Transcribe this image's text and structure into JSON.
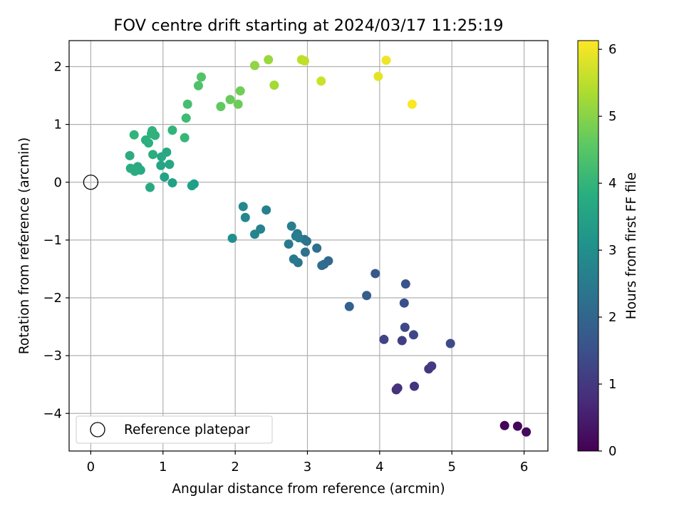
{
  "chart_data": {
    "type": "scatter",
    "title": "FOV centre drift starting at 2024/03/17 11:25:19",
    "xlabel": "Angular distance from reference (arcmin)",
    "ylabel": "Rotation from reference (arcmin)",
    "xlim": [
      -0.3,
      6.33
    ],
    "ylim": [
      -4.65,
      2.45
    ],
    "xticks": [
      0,
      1,
      2,
      3,
      4,
      5,
      6
    ],
    "yticks": [
      -4,
      -3,
      -2,
      -1,
      0,
      1,
      2
    ],
    "grid": true,
    "legend": {
      "placement": "lower-left",
      "entries": [
        "Reference platepar"
      ]
    },
    "colorbar": {
      "label": "Hours from first FF file",
      "range": [
        0,
        6.13
      ],
      "ticks": [
        0,
        1,
        2,
        3,
        4,
        5,
        6
      ],
      "colormap": "viridis"
    },
    "reference_point": {
      "x": 0,
      "y": 0
    },
    "series": [
      {
        "name": "Reference platepar",
        "points": [
          [
            0,
            0
          ]
        ]
      },
      {
        "points": [
          [
            5.73,
            -4.21,
            0.05
          ],
          [
            5.91,
            -4.22,
            0.1
          ],
          [
            6.03,
            -4.32,
            0.15
          ],
          [
            4.23,
            -3.59,
            0.85
          ],
          [
            4.25,
            -3.56,
            0.9
          ],
          [
            4.48,
            -3.53,
            0.95
          ],
          [
            4.68,
            -3.23,
            1.0
          ],
          [
            4.72,
            -3.18,
            1.05
          ],
          [
            4.31,
            -2.74,
            1.15
          ],
          [
            4.06,
            -2.72,
            1.25
          ],
          [
            4.47,
            -2.64,
            1.3
          ],
          [
            4.35,
            -2.51,
            1.35
          ],
          [
            4.98,
            -2.79,
            1.4
          ],
          [
            4.34,
            -2.09,
            1.5
          ],
          [
            4.36,
            -1.76,
            1.6
          ],
          [
            3.94,
            -1.58,
            1.7
          ],
          [
            3.82,
            -1.96,
            1.8
          ],
          [
            3.58,
            -2.15,
            1.9
          ],
          [
            3.29,
            -1.36,
            2.05
          ],
          [
            3.23,
            -1.42,
            2.1
          ],
          [
            3.2,
            -1.44,
            2.15
          ],
          [
            3.13,
            -1.14,
            2.2
          ],
          [
            2.97,
            -1.21,
            2.25
          ],
          [
            2.99,
            -1.02,
            2.3
          ],
          [
            2.96,
            -0.99,
            2.35
          ],
          [
            2.87,
            -1.39,
            2.4
          ],
          [
            2.81,
            -1.33,
            2.45
          ],
          [
            2.74,
            -1.07,
            2.5
          ],
          [
            2.86,
            -0.89,
            2.5
          ],
          [
            2.84,
            -0.93,
            2.55
          ],
          [
            2.88,
            -0.96,
            2.6
          ],
          [
            2.78,
            -0.76,
            2.65
          ],
          [
            2.43,
            -0.48,
            2.7
          ],
          [
            2.35,
            -0.81,
            2.75
          ],
          [
            2.27,
            -0.9,
            2.8
          ],
          [
            2.14,
            -0.61,
            2.85
          ],
          [
            2.11,
            -0.42,
            2.9
          ],
          [
            1.96,
            -0.97,
            3.05
          ],
          [
            1.43,
            -0.03,
            3.4
          ],
          [
            1.4,
            -0.06,
            3.45
          ],
          [
            1.13,
            -0.01,
            3.5
          ],
          [
            1.02,
            0.09,
            3.55
          ],
          [
            0.97,
            0.29,
            3.6
          ],
          [
            1.09,
            0.31,
            3.62
          ],
          [
            1.05,
            0.52,
            3.65
          ],
          [
            0.98,
            0.44,
            3.67
          ],
          [
            0.82,
            -0.09,
            3.7
          ],
          [
            0.69,
            0.21,
            3.72
          ],
          [
            0.65,
            0.27,
            3.74
          ],
          [
            0.61,
            0.19,
            3.76
          ],
          [
            0.55,
            0.24,
            3.78
          ],
          [
            0.54,
            0.46,
            3.8
          ],
          [
            0.86,
            0.48,
            3.82
          ],
          [
            0.8,
            0.68,
            3.85
          ],
          [
            0.76,
            0.73,
            3.87
          ],
          [
            0.89,
            0.81,
            3.9
          ],
          [
            0.84,
            0.84,
            3.93
          ],
          [
            0.85,
            0.89,
            3.95
          ],
          [
            0.6,
            0.82,
            3.97
          ],
          [
            1.13,
            0.9,
            4.0
          ],
          [
            1.3,
            0.77,
            4.1
          ],
          [
            1.32,
            1.11,
            4.2
          ],
          [
            1.34,
            1.35,
            4.3
          ],
          [
            1.49,
            1.67,
            4.4
          ],
          [
            1.53,
            1.82,
            4.45
          ],
          [
            1.8,
            1.31,
            4.6
          ],
          [
            1.93,
            1.43,
            4.7
          ],
          [
            2.04,
            1.35,
            4.75
          ],
          [
            2.07,
            1.58,
            4.8
          ],
          [
            2.27,
            2.02,
            5.1
          ],
          [
            2.46,
            2.12,
            5.2
          ],
          [
            2.54,
            1.68,
            5.3
          ],
          [
            2.92,
            2.12,
            5.5
          ],
          [
            2.96,
            2.1,
            5.55
          ],
          [
            3.19,
            1.75,
            5.65
          ],
          [
            3.98,
            1.83,
            5.9
          ],
          [
            4.09,
            2.11,
            6.0
          ],
          [
            4.45,
            1.35,
            6.1
          ]
        ]
      }
    ]
  }
}
